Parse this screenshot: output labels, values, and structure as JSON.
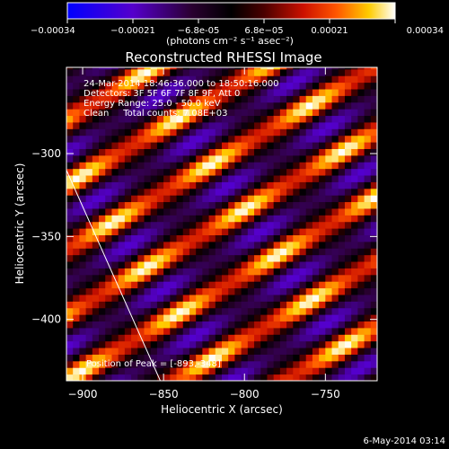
{
  "chart_data": {
    "type": "heatmap",
    "title": "Reconstructed RHESSI Image",
    "xlabel": "Heliocentric X (arcsec)",
    "ylabel": "Heliocentric Y (arcsec)",
    "xlim": [
      -910,
      -718
    ],
    "ylim": [
      -437,
      -248
    ],
    "x_ticks": [
      -900,
      -850,
      -800,
      -750
    ],
    "y_ticks": [
      -300,
      -350,
      -400
    ],
    "colorbar": {
      "ticks": [
        "-0.00034",
        "-0.00021",
        "-6.8e-05",
        "6.8e-05",
        "0.00021",
        "0.00034"
      ],
      "range": [
        -0.00034,
        0.00034
      ],
      "units_label": "(photons cm⁻² s⁻¹ asec⁻²)",
      "colors": [
        "#0000ff",
        "#5500cc",
        "#2a0030",
        "#000000",
        "#4a0000",
        "#cc1100",
        "#ff5500",
        "#ffcc00",
        "#ffffff"
      ]
    },
    "annotations": [
      "24-Mar-2014 18:46:36.000 to 18:50:16.000",
      "Detectors: 3F 5F 6F 7F 8F 9F, Att 0",
      "Energy Range: 25.0 - 50.0 keV",
      "Clean     Total counts: 7.08E+03"
    ],
    "peak": {
      "label": "Position of Peak = [-893,-348]",
      "x": -893,
      "y": -348
    },
    "limb_line": [
      [
        -910,
        -310
      ],
      [
        -852,
        -437
      ]
    ],
    "pattern": {
      "direction_deg": 30,
      "period_arcsec": 34,
      "peak_value": 0.00034,
      "min_value": -0.00021
    }
  },
  "footer": {
    "date": "6-May-2014 03:14"
  }
}
